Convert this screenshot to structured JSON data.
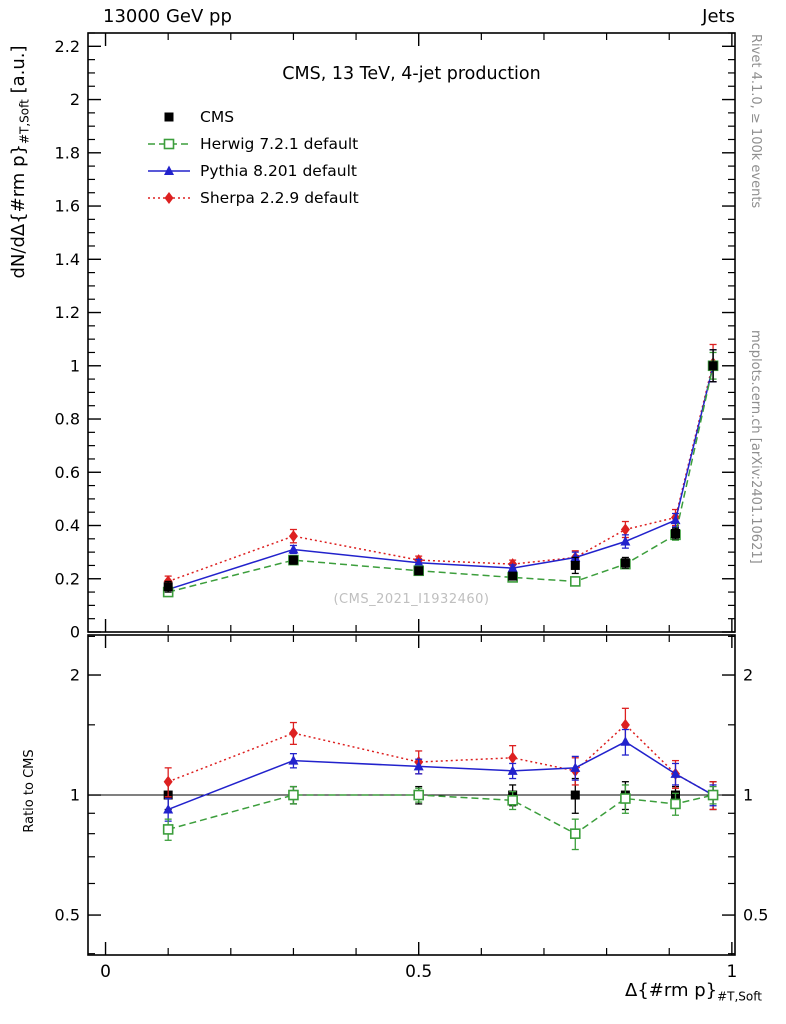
{
  "header": {
    "left": "13000 GeV pp",
    "right": "Jets"
  },
  "title": "CMS, 13 TeV, 4-jet production",
  "watermark": "(CMS_2021_I1932460)",
  "side_notes": {
    "top_right": "Rivet 4.1.0, ≥ 100k events",
    "bottom_right": "mcplots.cern.ch [arXiv:2401.10621]"
  },
  "axes": {
    "y_label_main": "dN/dΔ{#rm p}",
    "y_label_sub": "#T,Soft",
    "y_label_unit": " [a.u.]",
    "x_label_main": "Δ{#rm p}",
    "x_label_sub": "#T,Soft",
    "ratio_label": "Ratio to CMS"
  },
  "legend": [
    {
      "label": "CMS"
    },
    {
      "label": "Herwig 7.2.1 default"
    },
    {
      "label": "Pythia 8.201 default"
    },
    {
      "label": "Sherpa 2.2.9 default"
    }
  ],
  "chart_data": [
    {
      "type": "line",
      "panel": "main",
      "title": "CMS, 13 TeV, 4-jet production",
      "ylabel": "dN/dΔ{#rm p}_{#T,Soft} [a.u.]",
      "xlabel": "Δ{#rm p}_{#T,Soft}",
      "xlim": [
        -0.028,
        1.005
      ],
      "ylim": [
        0,
        2.25
      ],
      "xticks": [
        0,
        0.5,
        1
      ],
      "yticks": [
        0,
        0.2,
        0.4,
        0.6,
        0.8,
        1,
        1.2,
        1.4,
        1.6,
        1.8,
        2,
        2.2
      ],
      "grid": false,
      "legend_position": "top-left",
      "x": [
        0.1,
        0.3,
        0.5,
        0.65,
        0.75,
        0.83,
        0.91,
        0.97
      ],
      "series": [
        {
          "name": "CMS",
          "color": "#000000",
          "marker": "square",
          "linestyle": "none",
          "values": [
            0.17,
            0.27,
            0.23,
            0.21,
            0.25,
            0.26,
            0.37,
            1.0
          ],
          "errors": [
            0.02,
            0.015,
            0.012,
            0.012,
            0.03,
            0.02,
            0.02,
            0.06
          ]
        },
        {
          "name": "Herwig 7.2.1 default",
          "color": "#3c9e3c",
          "marker": "open-square",
          "linestyle": "dashed",
          "values": [
            0.15,
            0.27,
            0.23,
            0.205,
            0.19,
            0.255,
            0.365,
            1.0
          ],
          "errors": [
            0.012,
            0.012,
            0.01,
            0.01,
            0.015,
            0.015,
            0.02,
            0.05
          ]
        },
        {
          "name": "Pythia 8.201 default",
          "color": "#2222cc",
          "marker": "triangle",
          "linestyle": "solid",
          "values": [
            0.16,
            0.31,
            0.26,
            0.24,
            0.28,
            0.34,
            0.42,
            1.0
          ],
          "errors": [
            0.015,
            0.015,
            0.012,
            0.012,
            0.02,
            0.025,
            0.025,
            0.06
          ]
        },
        {
          "name": "Sherpa 2.2.9 default",
          "color": "#dd2020",
          "marker": "diamond",
          "linestyle": "dotted",
          "values": [
            0.19,
            0.36,
            0.27,
            0.255,
            0.28,
            0.385,
            0.43,
            1.01
          ],
          "errors": [
            0.02,
            0.025,
            0.015,
            0.015,
            0.025,
            0.03,
            0.03,
            0.07
          ]
        }
      ]
    },
    {
      "type": "line",
      "panel": "ratio",
      "ylabel": "Ratio to CMS",
      "yscale": "log",
      "xlim": [
        -0.028,
        1.005
      ],
      "ylim": [
        0.397,
        2.52
      ],
      "xticks": [
        0,
        0.5,
        1
      ],
      "yticks": [
        0.5,
        1,
        2
      ],
      "minor_yticks": [
        0.4,
        0.6,
        0.7,
        0.8,
        0.9,
        1.5,
        2.5
      ],
      "reference_line": 1,
      "x": [
        0.1,
        0.3,
        0.5,
        0.65,
        0.75,
        0.83,
        0.91,
        0.97
      ],
      "series": [
        {
          "name": "CMS",
          "color": "#000000",
          "marker": "square",
          "linestyle": "none",
          "values": [
            1,
            1,
            1,
            1,
            1,
            1,
            1,
            1
          ],
          "errors": [
            0.08,
            0.05,
            0.05,
            0.06,
            0.1,
            0.08,
            0.05,
            0.08
          ]
        },
        {
          "name": "Herwig 7.2.1 default",
          "color": "#3c9e3c",
          "marker": "open-square",
          "linestyle": "dashed",
          "values": [
            0.82,
            1.0,
            1.0,
            0.97,
            0.8,
            0.98,
            0.95,
            1.0
          ],
          "errors": [
            0.05,
            0.05,
            0.04,
            0.05,
            0.07,
            0.08,
            0.06,
            0.05
          ]
        },
        {
          "name": "Pythia 8.201 default",
          "color": "#2222cc",
          "marker": "triangle",
          "linestyle": "solid",
          "values": [
            0.92,
            1.22,
            1.18,
            1.15,
            1.17,
            1.36,
            1.13,
            1.0
          ],
          "errors": [
            0.06,
            0.05,
            0.05,
            0.05,
            0.08,
            0.1,
            0.07,
            0.06
          ]
        },
        {
          "name": "Sherpa 2.2.9 default",
          "color": "#dd2020",
          "marker": "diamond",
          "linestyle": "dotted",
          "values": [
            1.08,
            1.43,
            1.21,
            1.24,
            1.15,
            1.5,
            1.13,
            1.0
          ],
          "errors": [
            0.09,
            0.09,
            0.08,
            0.09,
            0.09,
            0.15,
            0.09,
            0.08
          ]
        }
      ]
    }
  ]
}
